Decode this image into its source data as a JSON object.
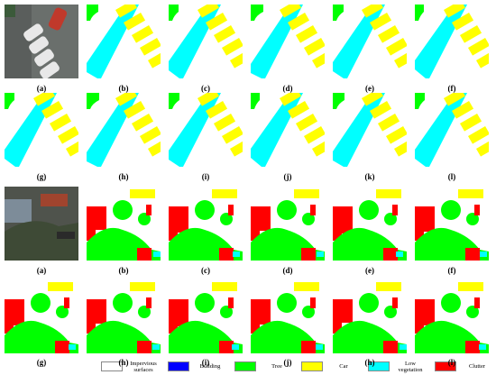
{
  "rows": [
    {
      "labels": [
        "(a)",
        "(b)",
        "(c)",
        "(d)",
        "(e)",
        "(f)"
      ]
    },
    {
      "labels": [
        "(g)",
        "(h)",
        "(i)",
        "(j)",
        "(k)",
        "(l)"
      ]
    },
    {
      "labels": [
        "(a)",
        "(b)",
        "(c)",
        "(d)",
        "(e)",
        "(f)"
      ]
    },
    {
      "labels": [
        "(g)",
        "(h)",
        "(i)",
        "(j)",
        "(h)",
        "(l)"
      ]
    }
  ],
  "legend": [
    {
      "label": "Impervious surfaces",
      "color": "#ffffff"
    },
    {
      "label": "Building",
      "color": "#0000ff"
    },
    {
      "label": "Tree",
      "color": "#00ff00"
    },
    {
      "label": "Car",
      "color": "#ffff00"
    },
    {
      "label": "Low vegetation",
      "color": "#00ffff"
    },
    {
      "label": "Clutter",
      "color": "#ff0000"
    }
  ]
}
